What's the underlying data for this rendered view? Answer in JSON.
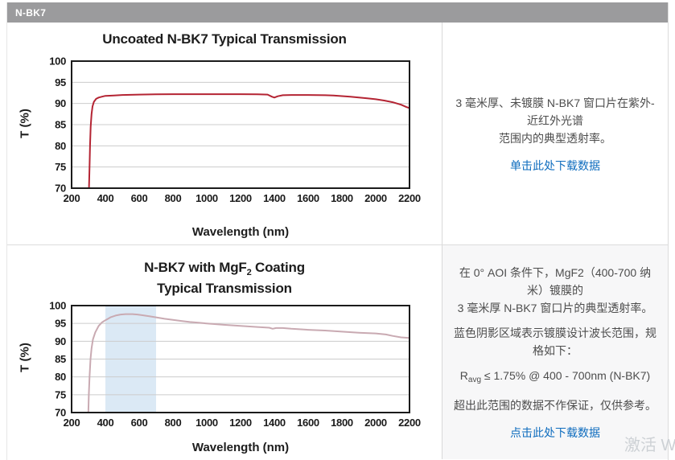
{
  "header": {
    "title": "N-BK7"
  },
  "row1": {
    "description_lines": [
      "3 毫米厚、未镀膜 N-BK7 窗口片在紫外-近红外光谱",
      "范围内的典型透射率。"
    ],
    "link": "单击此处下载数据"
  },
  "row2": {
    "description_lines": [
      "在 0° AOI 条件下，MgF2（400-700 纳米）镀膜的",
      "3 毫米厚 N-BK7 窗口片的典型透射率。"
    ],
    "note": "蓝色阴影区域表示镀膜设计波长范围，规格如下：",
    "spec_r": "R",
    "spec_sub": "avg",
    "spec_rest": " ≤ 1.75% @ 400 - 700nm (N-BK7)",
    "disclaimer": "超出此范围的数据不作保证，仅供参考。",
    "link": "点击此处下载数据"
  },
  "watermark": "激活 W",
  "colors": {
    "header_bar": "#9b9b9d",
    "link_blue": "#0e6cbe",
    "row2_panel_bg": "#f7f7f8"
  },
  "chart_data": [
    {
      "type": "line",
      "title": "Uncoated N-BK7 Typical Transmission",
      "xlabel": "Wavelength (nm)",
      "ylabel": "T (%)",
      "xlim": [
        200,
        2200
      ],
      "ylim": [
        70,
        100
      ],
      "xticks": [
        200,
        400,
        600,
        800,
        1000,
        1200,
        1400,
        1600,
        1800,
        2000,
        2200
      ],
      "yticks": [
        70,
        75,
        80,
        85,
        90,
        95,
        100
      ],
      "grid": "horizontal",
      "legend": "none",
      "line_color": "#b42433",
      "grid_color": "#cccccc",
      "points": [
        [
          303,
          70
        ],
        [
          306,
          75
        ],
        [
          309,
          80
        ],
        [
          313,
          84.5
        ],
        [
          318,
          87.5
        ],
        [
          324,
          89.3
        ],
        [
          332,
          90.4
        ],
        [
          345,
          91.1
        ],
        [
          360,
          91.4
        ],
        [
          380,
          91.6
        ],
        [
          400,
          91.8
        ],
        [
          450,
          91.9
        ],
        [
          500,
          92.0
        ],
        [
          600,
          92.1
        ],
        [
          700,
          92.15
        ],
        [
          800,
          92.2
        ],
        [
          900,
          92.2
        ],
        [
          1000,
          92.2
        ],
        [
          1100,
          92.2
        ],
        [
          1200,
          92.2
        ],
        [
          1300,
          92.15
        ],
        [
          1360,
          92.1
        ],
        [
          1385,
          91.6
        ],
        [
          1400,
          91.4
        ],
        [
          1420,
          91.7
        ],
        [
          1450,
          91.95
        ],
        [
          1500,
          92.0
        ],
        [
          1600,
          92.0
        ],
        [
          1700,
          91.95
        ],
        [
          1750,
          91.9
        ],
        [
          1800,
          91.75
        ],
        [
          1850,
          91.6
        ],
        [
          1900,
          91.4
        ],
        [
          1950,
          91.2
        ],
        [
          2000,
          91.0
        ],
        [
          2050,
          90.7
        ],
        [
          2100,
          90.3
        ],
        [
          2150,
          89.7
        ],
        [
          2180,
          89.2
        ],
        [
          2200,
          88.9
        ]
      ]
    },
    {
      "type": "line",
      "title": "N-BK7 with MgF2 Coating Typical Transmission",
      "title_pre": "N-BK7 with MgF",
      "title_sub": "2",
      "title_post": " Coating",
      "title_line2": "Typical Transmission",
      "xlabel": "Wavelength (nm)",
      "ylabel": "T (%)",
      "xlim": [
        200,
        2200
      ],
      "ylim": [
        70,
        100
      ],
      "xticks": [
        200,
        400,
        600,
        800,
        1000,
        1200,
        1400,
        1600,
        1800,
        2000,
        2200
      ],
      "yticks": [
        70,
        75,
        80,
        85,
        90,
        95,
        100
      ],
      "grid": "horizontal",
      "legend": "none",
      "line_color": "#c9aab2",
      "grid_color": "#cccccc",
      "band": {
        "from": 400,
        "to": 700,
        "color": "#dbe9f5",
        "meaning": "coating design wavelength range"
      },
      "points": [
        [
          299,
          70
        ],
        [
          302,
          75
        ],
        [
          306,
          80
        ],
        [
          312,
          85
        ],
        [
          318,
          88
        ],
        [
          326,
          90.5
        ],
        [
          340,
          92.5
        ],
        [
          360,
          94.3
        ],
        [
          380,
          95.3
        ],
        [
          400,
          95.9
        ],
        [
          430,
          96.7
        ],
        [
          460,
          97.2
        ],
        [
          490,
          97.5
        ],
        [
          520,
          97.6
        ],
        [
          560,
          97.6
        ],
        [
          590,
          97.5
        ],
        [
          620,
          97.3
        ],
        [
          660,
          97.0
        ],
        [
          700,
          96.7
        ],
        [
          750,
          96.3
        ],
        [
          800,
          96.0
        ],
        [
          850,
          95.7
        ],
        [
          900,
          95.4
        ],
        [
          950,
          95.2
        ],
        [
          1000,
          95.0
        ],
        [
          1100,
          94.6
        ],
        [
          1200,
          94.3
        ],
        [
          1300,
          94.0
        ],
        [
          1370,
          93.8
        ],
        [
          1390,
          93.5
        ],
        [
          1410,
          93.7
        ],
        [
          1450,
          93.7
        ],
        [
          1500,
          93.5
        ],
        [
          1600,
          93.2
        ],
        [
          1700,
          93.0
        ],
        [
          1800,
          92.7
        ],
        [
          1900,
          92.4
        ],
        [
          2000,
          92.2
        ],
        [
          2060,
          91.9
        ],
        [
          2100,
          91.5
        ],
        [
          2150,
          91.1
        ],
        [
          2200,
          90.9
        ]
      ]
    }
  ]
}
